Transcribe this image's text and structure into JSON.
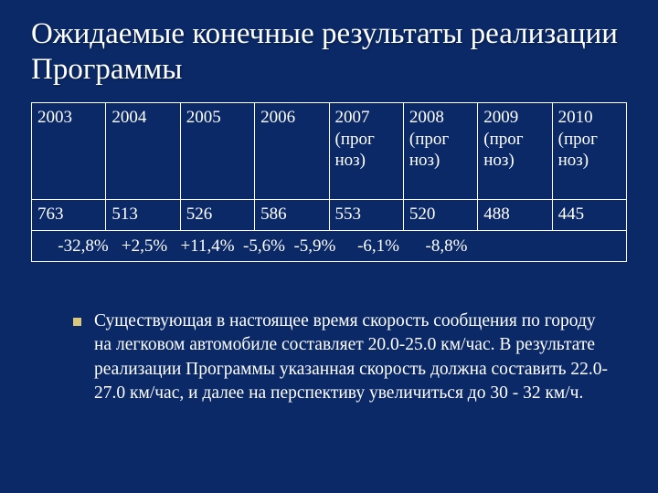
{
  "title": "Ожидаемые конечные результаты реализации Программы",
  "table": {
    "years": [
      "2003",
      "2004",
      "2005",
      "2006",
      "2007 (прог\nноз)",
      "2008 (прог\nноз)",
      "2009 (прог\nноз)",
      "2010 (прог\nноз)"
    ],
    "values": [
      "763",
      "513",
      "526",
      "586",
      "553",
      "520",
      "488",
      "445"
    ],
    "changes": "   -32,8%   +2,5%   +11,4%  -5,6%  -5,9%     -6,1%      -8,8%"
  },
  "bullet": "Существующая в настоящее время скорость сообщения по городу на легковом автомобиле составляет 20.0-25.0 км/час. В результате реализации Программы указанная скорость должна составить 22.0-27.0 км/час, и далее на перспективу увеличиться до 30 - 32 км/ч.",
  "colors": {
    "background": "#0a2966",
    "text": "#ffffff",
    "border": "#ffffff",
    "bullet": "#d9c77e"
  }
}
